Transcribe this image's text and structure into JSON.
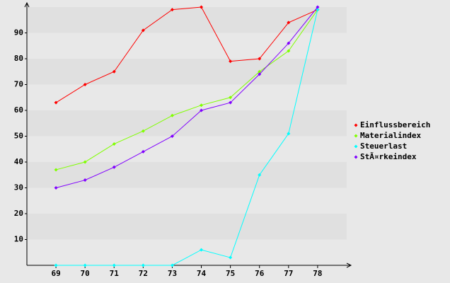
{
  "chart_data": {
    "type": "line",
    "x": [
      69,
      70,
      71,
      72,
      73,
      74,
      75,
      76,
      77,
      78
    ],
    "xlim": [
      68,
      79
    ],
    "xticks": [
      69,
      70,
      71,
      72,
      73,
      74,
      75,
      76,
      77,
      78
    ],
    "ylim": [
      0,
      100
    ],
    "yticks": [
      10,
      20,
      30,
      40,
      50,
      60,
      70,
      80,
      90
    ],
    "grid": "bands",
    "legend": "right",
    "series": [
      {
        "name": "Einflussbereich",
        "color": "#ff0000",
        "values": [
          63,
          70,
          75,
          91,
          99,
          100,
          79,
          80,
          94,
          99
        ]
      },
      {
        "name": "Materialindex",
        "color": "#80ff00",
        "values": [
          37,
          40,
          47,
          52,
          58,
          62,
          65,
          75,
          83,
          99
        ]
      },
      {
        "name": "Steuerlast",
        "color": "#00ffff",
        "values": [
          0,
          0,
          0,
          0,
          0,
          6,
          3,
          35,
          51,
          99
        ]
      },
      {
        "name": "StÃ¤rkeindex",
        "color": "#8000ff",
        "values": [
          30,
          33,
          38,
          44,
          50,
          60,
          63,
          74,
          86,
          100
        ]
      }
    ]
  }
}
